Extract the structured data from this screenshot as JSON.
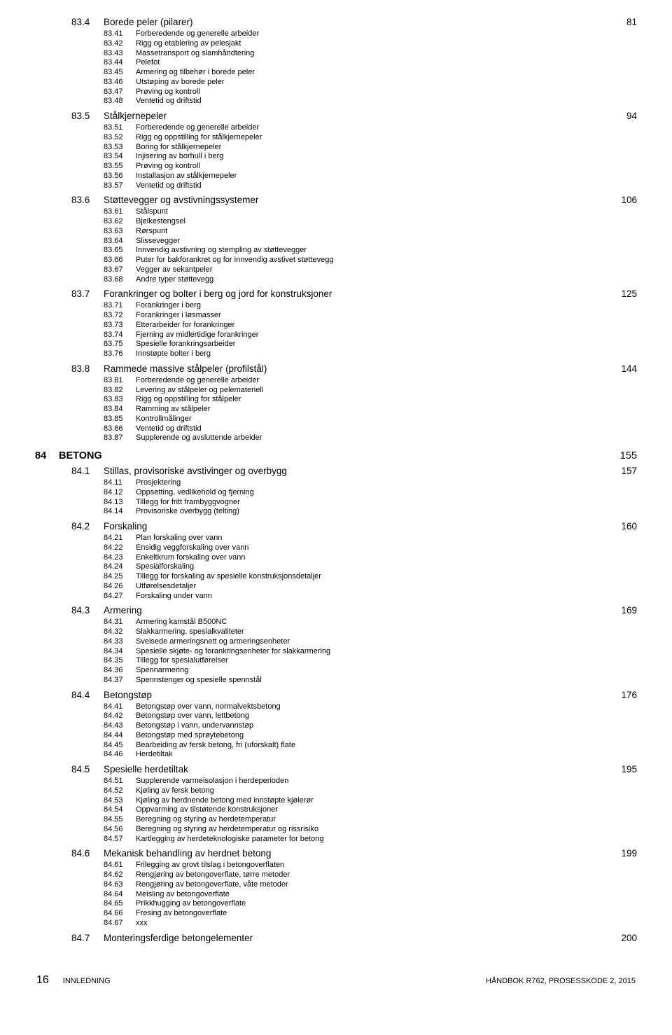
{
  "leftCol": [
    {
      "code": "83.4",
      "title": "Borede peler (pilarer)",
      "page": "81",
      "subs": [
        {
          "code": "83.41",
          "title": "Forberedende og generelle arbeider"
        },
        {
          "code": "83.42",
          "title": "Rigg og etablering av pelesjakt"
        },
        {
          "code": "83.43",
          "title": "Massetransport og slamhåndtering"
        },
        {
          "code": "83.44",
          "title": "Pelefot"
        },
        {
          "code": "83.45",
          "title": "Armering og tilbehør i borede peler"
        },
        {
          "code": "83.46",
          "title": "Utstøping av borede peler"
        },
        {
          "code": "83.47",
          "title": "Prøving og kontroll"
        },
        {
          "code": "83.48",
          "title": "Ventetid og driftstid"
        }
      ]
    },
    {
      "code": "83.5",
      "title": "Stålkjernepeler",
      "page": "94",
      "subs": [
        {
          "code": "83.51",
          "title": "Forberedende og generelle arbeider"
        },
        {
          "code": "83.52",
          "title": "Rigg og oppstilling for stålkjernepeler"
        },
        {
          "code": "83.53",
          "title": "Boring for stålkjernepeler"
        },
        {
          "code": "83.54",
          "title": "Injisering av borhull i berg"
        },
        {
          "code": "83.55",
          "title": "Prøving og kontroll"
        },
        {
          "code": "83.56",
          "title": "Installasjon av stålkjernepeler"
        },
        {
          "code": "83.57",
          "title": "Ventetid og driftstid"
        }
      ]
    },
    {
      "code": "83.6",
      "title": "Støttevegger og avstivningssystemer",
      "page": "106",
      "subs": [
        {
          "code": "83.61",
          "title": "Stålspunt"
        },
        {
          "code": "83.62",
          "title": "Bjelkestengsel"
        },
        {
          "code": "83.63",
          "title": "Rørspunt"
        },
        {
          "code": "83.64",
          "title": "Slissevegger"
        },
        {
          "code": "83.65",
          "title": "Innvendig avstivning og stempling av støttevegger"
        },
        {
          "code": "83.66",
          "title": "Puter for bakforankret og for innvendig avstivet støttevegg"
        },
        {
          "code": "83.67",
          "title": "Vegger av sekantpeler"
        },
        {
          "code": "83.68",
          "title": "Andre typer støttevegg"
        }
      ]
    },
    {
      "code": "83.7",
      "title": "Forankringer og bolter i berg og jord for konstruksjoner",
      "page": "125",
      "subs": [
        {
          "code": "83.71",
          "title": "Forankringer i berg"
        },
        {
          "code": "83.72",
          "title": "Forankringer i løsmasser"
        },
        {
          "code": "83.73",
          "title": "Etterarbeider for forankringer"
        },
        {
          "code": "83.74",
          "title": "Fjerning av midlertidige forankringer"
        },
        {
          "code": "83.75",
          "title": "Spesielle forankringsarbeider"
        },
        {
          "code": "83.76",
          "title": "Innstøpte bolter i berg"
        }
      ]
    },
    {
      "code": "83.8",
      "title": "Rammede massive stålpeler (profilstål)",
      "page": "144",
      "subs": [
        {
          "code": "83.81",
          "title": "Forberedende og generelle arbeider"
        },
        {
          "code": "83.82",
          "title": "Levering av stålpeler og pelemateriell"
        },
        {
          "code": "83.83",
          "title": "Rigg og oppstilling for stålpeler"
        },
        {
          "code": "83.84",
          "title": "Ramming av stålpeler"
        },
        {
          "code": "83.85",
          "title": "Kontrollmålinger"
        },
        {
          "code": "83.86",
          "title": "Ventetid og driftstid"
        },
        {
          "code": "83.87",
          "title": "Supplerende og avsluttende arbeider"
        }
      ]
    }
  ],
  "chapter": {
    "code": "84",
    "title": "BETONG",
    "page": "155"
  },
  "chapterSections": [
    {
      "code": "84.1",
      "title": "Stillas, provisoriske avstivinger og overbygg",
      "page": "157",
      "subs": [
        {
          "code": "84.11",
          "title": "Prosjektering"
        },
        {
          "code": "84.12",
          "title": "Oppsetting, vedlikehold og fjerning"
        },
        {
          "code": "84.13",
          "title": "Tillegg for fritt frambyggvogner"
        },
        {
          "code": "84.14",
          "title": "Provisoriske overbygg (telting)"
        }
      ]
    },
    {
      "code": "84.2",
      "title": "Forskaling",
      "page": "160",
      "subs": [
        {
          "code": "84.21",
          "title": "Plan forskaling over vann"
        },
        {
          "code": "84.22",
          "title": "Ensidig veggforskaling over vann"
        },
        {
          "code": "84.23",
          "title": "Enkeltkrum forskaling over vann"
        },
        {
          "code": "84.24",
          "title": "Spesialforskaling"
        },
        {
          "code": "84.25",
          "title": "Tillegg for forskaling av spesielle konstruksjonsdetaljer"
        },
        {
          "code": "84.26",
          "title": "Utførelsesdetaljer"
        },
        {
          "code": "84.27",
          "title": "Forskaling under vann"
        }
      ]
    },
    {
      "code": "84.3",
      "title": "Armering",
      "page": "169",
      "subs": [
        {
          "code": "84.31",
          "title": "Armering kamstål B500NC"
        },
        {
          "code": "84.32",
          "title": "Slakkarmering, spesialkvaliteter"
        },
        {
          "code": "84.33",
          "title": "Sveisede armeringsnett og armeringsenheter"
        },
        {
          "code": "84.34",
          "title": "Spesielle skjøte- og forankringsenheter for slakkarmering"
        },
        {
          "code": "84.35",
          "title": "Tillegg for spesialutførelser"
        },
        {
          "code": "84.36",
          "title": "Spennarmering"
        },
        {
          "code": "84.37",
          "title": "Spennstenger og spesielle spennstål"
        }
      ]
    },
    {
      "code": "84.4",
      "title": "Betongstøp",
      "page": "176",
      "subs": [
        {
          "code": "84.41",
          "title": "Betongstøp over vann, normalvektsbetong"
        },
        {
          "code": "84.42",
          "title": "Betongstøp over vann, lettbetong"
        },
        {
          "code": "84.43",
          "title": "Betongstøp i vann, undervannstøp"
        },
        {
          "code": "84.44",
          "title": "Betongstøp med sprøytebetong"
        },
        {
          "code": "84.45",
          "title": "Bearbeiding av fersk betong, fri (uforskalt) flate"
        },
        {
          "code": "84.46",
          "title": "Herdetiltak"
        }
      ]
    },
    {
      "code": "84.5",
      "title": "Spesielle herdetiltak",
      "page": "195",
      "subs": [
        {
          "code": "84.51",
          "title": "Supplerende varmeisolasjon i herdeperioden"
        },
        {
          "code": "84.52",
          "title": "Kjøling av fersk betong"
        },
        {
          "code": "84.53",
          "title": "Kjøling av herdnende betong med innstøpte kjølerør"
        },
        {
          "code": "84.54",
          "title": "Oppvarming av tilstøtende konstruksjoner"
        },
        {
          "code": "84.55",
          "title": "Beregning og styring av herdetemperatur"
        },
        {
          "code": "84.56",
          "title": "Beregning og styring av herdetemperatur og rissrisiko"
        },
        {
          "code": "84.57",
          "title": "Kartlegging av herdeteknologiske parameter for betong"
        }
      ]
    },
    {
      "code": "84.6",
      "title": "Mekanisk behandling av herdnet betong",
      "page": "199",
      "subs": [
        {
          "code": "84.61",
          "title": "Frilegging av grovt tilslag i betongoverflaten"
        },
        {
          "code": "84.62",
          "title": "Rengjøring av betongoverflate, tørre metoder"
        },
        {
          "code": "84.63",
          "title": "Rengjøring av betongoverflate, våte metoder"
        },
        {
          "code": "84.64",
          "title": "Meisling av betongoverflate"
        },
        {
          "code": "84.65",
          "title": "Prikkhugging av betongoverflate"
        },
        {
          "code": "84.66",
          "title": "Fresing av betongoverflate"
        },
        {
          "code": "84.67",
          "title": "xxx"
        }
      ]
    },
    {
      "code": "84.7",
      "title": "Monteringsferdige betongelementer",
      "page": "200",
      "subs": []
    }
  ],
  "footer": {
    "pageNum": "16",
    "sectionLabel": "INNLEDNING",
    "right": "HÅNDBOK R762, PROSESSKODE 2, 2015"
  }
}
